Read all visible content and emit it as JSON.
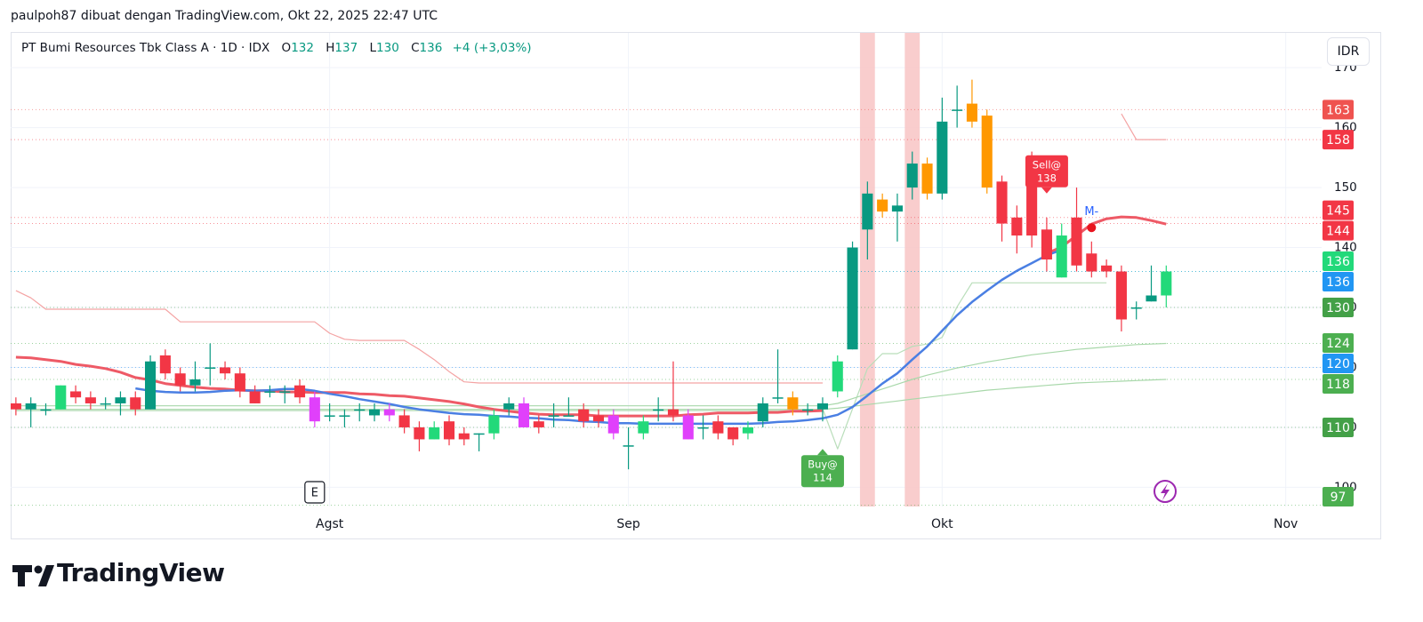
{
  "header": "paulpoh87 dibuat dengan TradingView.com, Okt 22, 2025 22:47 UTC",
  "logo": "TradingView",
  "chart_data": {
    "type": "candlestick",
    "title": "PT Bumi Resources Tbk Class A · 1D · IDX",
    "ohlc": [
      {
        "key": "O",
        "value": 132
      },
      {
        "key": "H",
        "value": 137
      },
      {
        "key": "L",
        "value": 130
      },
      {
        "key": "C",
        "value": 136
      }
    ],
    "change": "+4 (+3,03%)",
    "currency": "IDR",
    "xlim": [
      -0.35,
      87.4
    ],
    "xticks": [
      {
        "value": 21,
        "label": "Agst"
      },
      {
        "value": 41,
        "label": "Sep"
      },
      {
        "value": 62,
        "label": "Okt"
      },
      {
        "value": 85,
        "label": "Nov"
      }
    ],
    "ylim": [
      96.8,
      175.8
    ],
    "yticks": [
      100,
      110,
      120,
      130,
      140,
      150,
      160,
      170
    ],
    "grid": true,
    "open": [
      114,
      113,
      113,
      113,
      116,
      115,
      114,
      114,
      115,
      113,
      122,
      119,
      117,
      120,
      120,
      119,
      116,
      116,
      116,
      117,
      115,
      112,
      112,
      113,
      112,
      113,
      112,
      110,
      108,
      111,
      109,
      109,
      109,
      113,
      114,
      111,
      112,
      112,
      113,
      112,
      112,
      107,
      109,
      113,
      113,
      112,
      110,
      111,
      110,
      109,
      111,
      115,
      113,
      113,
      113,
      116,
      123,
      143,
      146,
      146,
      150,
      149,
      149,
      163,
      161,
      162,
      151,
      145,
      151,
      143,
      135,
      145,
      139,
      137,
      136,
      130,
      131,
      132
    ],
    "high": [
      115,
      115,
      114,
      117,
      117,
      116,
      115,
      116,
      116,
      122,
      123,
      120,
      121,
      124,
      121,
      120,
      117,
      117,
      117,
      118,
      116,
      114,
      113,
      114,
      114,
      114,
      113,
      111,
      111,
      112,
      110,
      109,
      113,
      115,
      115,
      112,
      114,
      115,
      114,
      113,
      113,
      110,
      112,
      115,
      121,
      113,
      112,
      112,
      110,
      111,
      115,
      123,
      116,
      114,
      115,
      122,
      141,
      151,
      149,
      149,
      156,
      155,
      165,
      167,
      168,
      163,
      152,
      147,
      156,
      145,
      144,
      150,
      141,
      138,
      137,
      131,
      137,
      137
    ],
    "low": [
      112,
      110,
      112,
      113,
      114,
      113,
      113,
      112,
      112,
      113,
      118,
      116,
      116,
      117,
      118,
      115,
      114,
      115,
      114,
      114,
      110,
      111,
      110,
      111,
      111,
      111,
      109,
      106,
      108,
      107,
      107,
      106,
      108,
      112,
      110,
      109,
      110,
      112,
      110,
      110,
      108,
      103,
      108,
      111,
      111,
      108,
      108,
      108,
      107,
      108,
      110,
      114,
      112,
      112,
      111,
      115,
      123,
      138,
      145,
      141,
      148,
      148,
      148,
      160,
      160,
      149,
      141,
      139,
      140,
      136,
      135,
      136,
      135,
      135,
      126,
      128,
      131,
      130
    ],
    "close": [
      113,
      114,
      113,
      117,
      115,
      114,
      114,
      115,
      113,
      121,
      119,
      117,
      118,
      120,
      119,
      116,
      114,
      116,
      116,
      115,
      111,
      112,
      112,
      113,
      113,
      112,
      110,
      108,
      110,
      108,
      108,
      109,
      112,
      114,
      110,
      110,
      112,
      112,
      111,
      111,
      109,
      107,
      111,
      113,
      112,
      108,
      110,
      109,
      108,
      110,
      114,
      115,
      115,
      113,
      114,
      121,
      140,
      149,
      148,
      147,
      154,
      154,
      161,
      163,
      164,
      150,
      144,
      142,
      142,
      138,
      142,
      137,
      136,
      136,
      128,
      130,
      132,
      136
    ],
    "candle_colors": [
      "#f23645",
      "#089981",
      "#089981",
      "#22d97a",
      "#f23645",
      "#f23645",
      "#089981",
      "#089981",
      "#f23645",
      "#089981",
      "#f23645",
      "#f23645",
      "#089981",
      "#089981",
      "#f23645",
      "#f23645",
      "#f23645",
      "#089981",
      "#089981",
      "#f23645",
      "#e040fb",
      "#089981",
      "#089981",
      "#089981",
      "#089981",
      "#e040fb",
      "#f23645",
      "#f23645",
      "#22d97a",
      "#f23645",
      "#f23645",
      "#089981",
      "#22d97a",
      "#089981",
      "#e040fb",
      "#f23645",
      "#089981",
      "#089981",
      "#f23645",
      "#f23645",
      "#e040fb",
      "#089981",
      "#22d97a",
      "#089981",
      "#f23645",
      "#e040fb",
      "#089981",
      "#f23645",
      "#f23645",
      "#22d97a",
      "#089981",
      "#089981",
      "#ff9800",
      "#089981",
      "#089981",
      "#22d97a",
      "#089981",
      "#089981",
      "#ff9800",
      "#089981",
      "#089981",
      "#ff9800",
      "#089981",
      "#089981",
      "#ff9800",
      "#ff9800",
      "#f23645",
      "#f23645",
      "#f23645",
      "#f23645",
      "#22d97a",
      "#f23645",
      "#f23645",
      "#f23645",
      "#f23645",
      "#089981",
      "#089981",
      "#22d97a"
    ],
    "overlays": [
      {
        "color": "#f4a3a3",
        "width": 1.2,
        "values": [
          132.8,
          131.6,
          129.7,
          129.7,
          129.7,
          129.7,
          129.7,
          129.7,
          129.7,
          129.7,
          129.7,
          127.6,
          127.6,
          127.6,
          127.6,
          127.6,
          127.6,
          127.6,
          127.6,
          127.6,
          127.6,
          125.7,
          124.7,
          124.5,
          124.5,
          124.5,
          124.5,
          123.0,
          121.3,
          119.3,
          117.6,
          117.4,
          117.4,
          117.4,
          117.4,
          117.4,
          117.4,
          117.4,
          117.4,
          117.4,
          117.4,
          117.4,
          117.4,
          117.4,
          117.4,
          117.4,
          117.4,
          117.4,
          117.4,
          117.4,
          117.4,
          117.4,
          117.4,
          117.4,
          117.4,
          null,
          null,
          null,
          null,
          null,
          null,
          null,
          null,
          null,
          null,
          null,
          null,
          null,
          null,
          null,
          null,
          null,
          null,
          null,
          162.3,
          158.0,
          158.0,
          158.0
        ]
      },
      {
        "color": "#b9deba",
        "width": 1.2,
        "values": [
          112.8,
          112.8,
          112.8,
          112.8,
          112.8,
          112.8,
          112.8,
          112.8,
          112.8,
          112.8,
          112.8,
          112.8,
          112.8,
          112.8,
          112.8,
          112.8,
          112.8,
          112.8,
          112.8,
          112.8,
          112.8,
          112.8,
          112.8,
          112.8,
          112.8,
          112.8,
          112.8,
          112.8,
          112.8,
          112.8,
          112.8,
          112.8,
          112.8,
          112.8,
          112.8,
          112.8,
          112.8,
          112.8,
          112.8,
          112.8,
          112.8,
          112.8,
          112.8,
          112.8,
          112.8,
          112.8,
          112.8,
          112.8,
          112.8,
          112.8,
          112.8,
          112.8,
          112.8,
          112.8,
          113.1,
          106.4,
          113.1,
          119.8,
          122.3,
          122.3,
          123.5,
          123.9,
          125.0,
          130.1,
          134.1,
          134.1,
          134.1,
          134.1,
          134.1,
          134.1,
          134.1,
          134.1,
          134.1,
          134.1,
          null,
          null,
          null,
          null
        ]
      },
      {
        "color": "#a8d8aa",
        "width": 1.2,
        "values": [
          113.6,
          113.6,
          113.6,
          113.6,
          113.6,
          113.6,
          113.6,
          113.6,
          113.6,
          113.6,
          113.6,
          113.6,
          113.6,
          113.6,
          113.6,
          113.6,
          113.6,
          113.6,
          113.6,
          113.6,
          113.6,
          113.6,
          113.6,
          113.6,
          113.6,
          113.6,
          113.6,
          113.6,
          113.6,
          113.6,
          113.6,
          113.6,
          113.6,
          113.6,
          113.6,
          113.6,
          113.6,
          113.6,
          113.6,
          113.6,
          113.6,
          113.6,
          113.6,
          113.6,
          113.6,
          113.6,
          113.6,
          113.6,
          113.6,
          113.6,
          113.6,
          113.6,
          113.6,
          113.6,
          113.6,
          114.0,
          114.8,
          115.6,
          116.4,
          117.2,
          118.0,
          118.7,
          119.3,
          119.9,
          120.4,
          120.9,
          121.3,
          121.7,
          122.1,
          122.4,
          122.7,
          123.0,
          123.2,
          123.4,
          123.6,
          123.8,
          123.9,
          124.0
        ]
      },
      {
        "color": "#a8d8aa",
        "width": 1.2,
        "values": [
          113.0,
          113.0,
          113.0,
          113.0,
          113.0,
          113.0,
          113.0,
          113.0,
          113.0,
          113.0,
          113.0,
          113.0,
          113.0,
          113.0,
          113.0,
          113.0,
          113.0,
          113.0,
          113.0,
          113.0,
          113.0,
          113.0,
          113.0,
          113.0,
          113.0,
          113.0,
          113.0,
          113.0,
          113.0,
          113.0,
          113.0,
          113.0,
          113.0,
          113.0,
          113.0,
          113.0,
          113.0,
          113.0,
          113.0,
          113.0,
          113.0,
          113.0,
          113.0,
          113.0,
          113.0,
          113.0,
          113.0,
          113.0,
          113.0,
          113.0,
          113.0,
          113.0,
          113.0,
          113.0,
          113.0,
          113.2,
          113.5,
          113.8,
          114.1,
          114.4,
          114.7,
          115.0,
          115.3,
          115.6,
          115.9,
          116.2,
          116.4,
          116.6,
          116.8,
          117.0,
          117.2,
          117.4,
          117.5,
          117.6,
          117.7,
          117.8,
          117.9,
          118.0
        ]
      },
      {
        "color": "#ee5a66",
        "width": 3,
        "values": [
          121.7,
          121.6,
          121.3,
          121.0,
          120.5,
          120.2,
          119.8,
          119.2,
          118.3,
          117.9,
          117.3,
          117.0,
          116.7,
          116.5,
          116.4,
          116.2,
          116.1,
          116.1,
          115.9,
          115.9,
          115.8,
          115.8,
          115.8,
          115.6,
          115.5,
          115.3,
          115.2,
          114.9,
          114.6,
          114.3,
          113.9,
          113.4,
          113.0,
          112.7,
          112.4,
          112.2,
          112.1,
          112.1,
          112.1,
          111.9,
          111.9,
          111.9,
          111.9,
          111.9,
          111.9,
          112.1,
          112.2,
          112.4,
          112.4,
          112.4,
          112.5,
          112.5,
          112.7,
          112.7,
          112.8,
          null,
          null,
          null,
          null,
          null,
          null,
          null,
          null,
          null,
          null,
          null,
          null,
          null,
          null,
          139.0,
          140.1,
          142.0,
          143.9,
          144.8,
          145.1,
          145.0,
          144.5,
          143.9
        ]
      },
      {
        "color": "#4a7fe3",
        "width": 2.5,
        "values": [
          null,
          null,
          null,
          null,
          null,
          null,
          null,
          null,
          116.5,
          116.1,
          115.9,
          115.8,
          115.8,
          115.9,
          116.1,
          116.2,
          116.1,
          116.2,
          116.4,
          116.4,
          116.1,
          115.6,
          115.2,
          114.7,
          114.3,
          113.9,
          113.4,
          113.0,
          112.7,
          112.4,
          112.2,
          112.1,
          111.9,
          111.8,
          111.6,
          111.5,
          111.3,
          111.2,
          111.0,
          110.9,
          110.7,
          110.7,
          110.6,
          110.6,
          110.6,
          110.6,
          110.6,
          110.6,
          110.6,
          110.6,
          110.7,
          110.9,
          111.0,
          111.2,
          111.5,
          112.1,
          113.4,
          115.3,
          117.3,
          119.0,
          121.3,
          123.5,
          126.1,
          128.7,
          130.9,
          132.8,
          134.6,
          136.1,
          137.4,
          138.7,
          139.6,
          null,
          null,
          null,
          null,
          null,
          null,
          null
        ]
      }
    ],
    "highlights": [
      57,
      60
    ],
    "signals": [
      {
        "label": "Buy@",
        "price": 114,
        "index": 54,
        "side": "below",
        "color": "#4caf50"
      },
      {
        "label": "Sell@",
        "price": 138,
        "index": 69,
        "side": "above",
        "color": "#f23645"
      }
    ],
    "marker": {
      "label": "M-",
      "index": 72,
      "price": 143.3
    },
    "event": {
      "label": "E",
      "index": 20
    },
    "price_tags": [
      {
        "value": 163,
        "color": "#ef5350"
      },
      {
        "value": 158,
        "color": "#f23645"
      },
      {
        "value": 145,
        "color": "#f23645"
      },
      {
        "value": 144,
        "color": "#f23645"
      },
      {
        "value": 136,
        "color": "#22d97a"
      },
      {
        "value": 136,
        "color": "#2196f3"
      },
      {
        "value": 130,
        "color": "#43a047"
      },
      {
        "value": 124,
        "color": "#4caf50"
      },
      {
        "value": 120,
        "color": "#2196f3"
      },
      {
        "value": 118,
        "color": "#4caf50"
      },
      {
        "value": 110,
        "color": "#43a047"
      },
      {
        "value": 97,
        "color": "#4caf50"
      }
    ]
  }
}
